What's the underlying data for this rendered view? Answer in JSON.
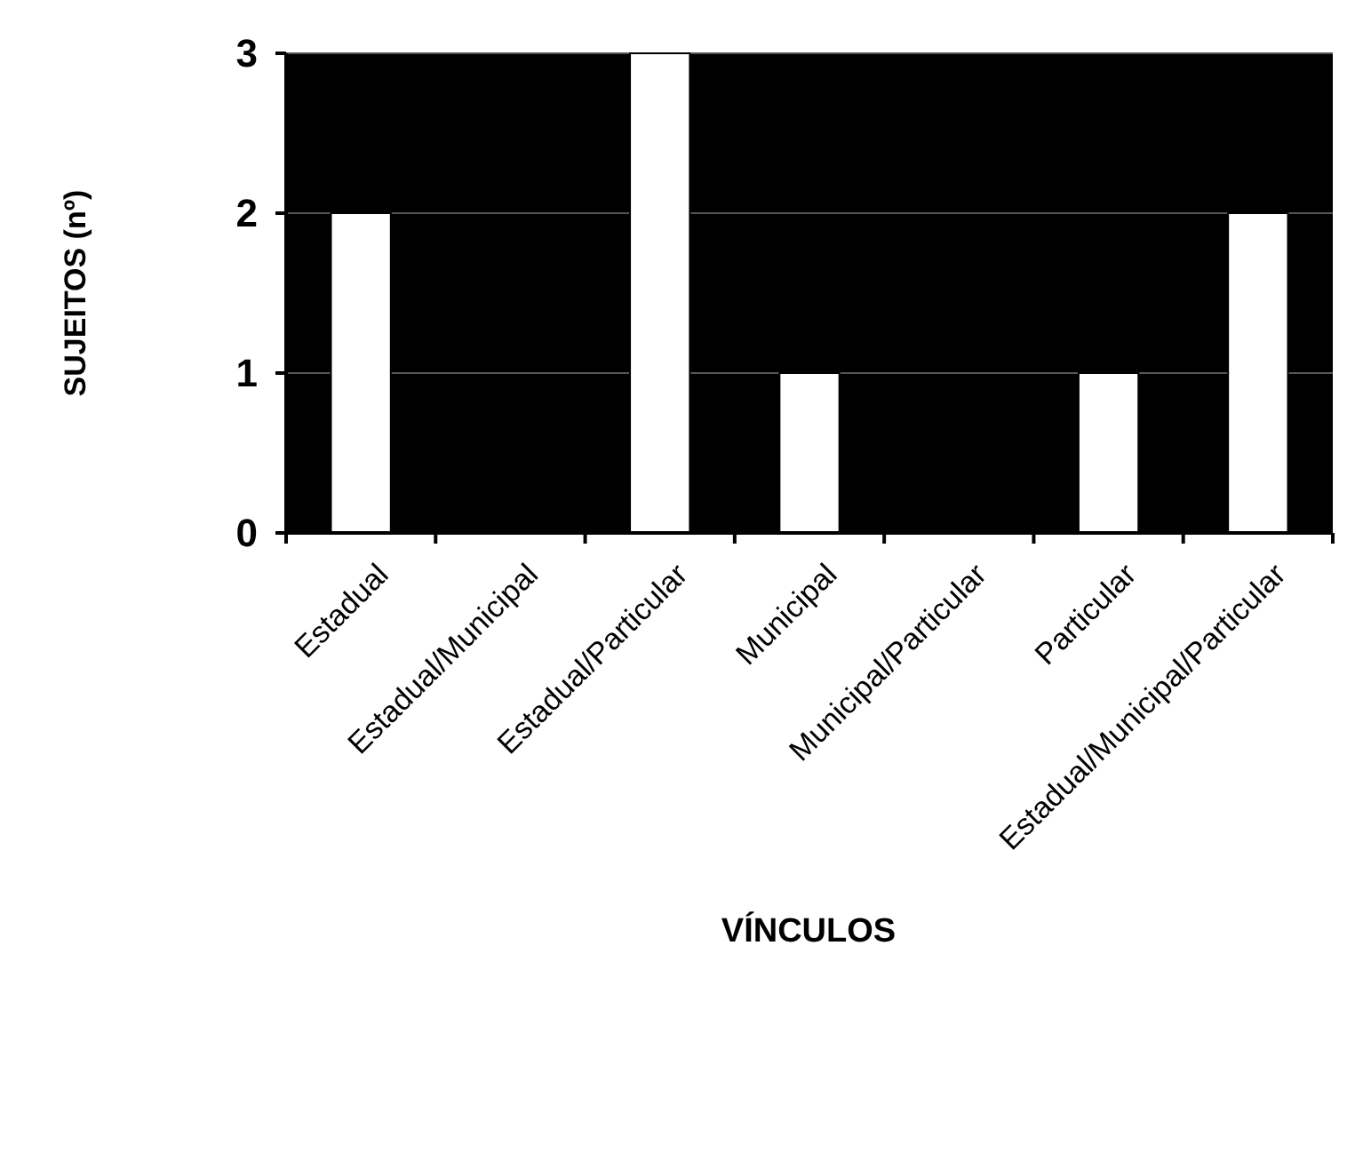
{
  "chart_data": {
    "type": "bar",
    "xlabel": "VÍNCULOS",
    "ylabel": "SUJEITOS (nº)",
    "categories": [
      "Estadual",
      "Estadual/Municipal",
      "Estadual/Particular",
      "Municipal",
      "Municipal/Particular",
      "Particular",
      "Estadual/Municipal/Particular"
    ],
    "values": [
      2,
      0,
      3,
      1,
      0,
      1,
      2
    ],
    "color": "#ffffff",
    "ylim": [
      0,
      3
    ],
    "yticks": [
      0,
      1,
      2,
      3
    ],
    "grid": "y"
  }
}
